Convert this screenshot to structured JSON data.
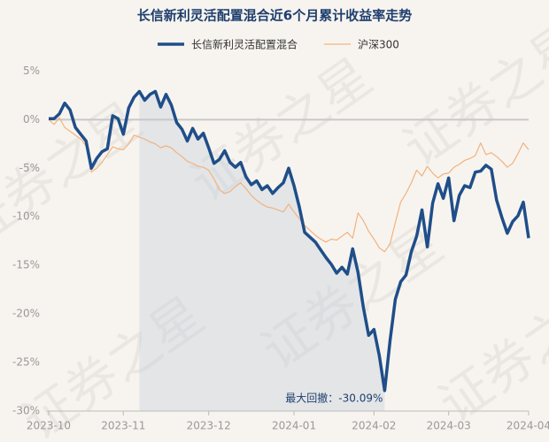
{
  "chart_data": {
    "type": "line",
    "title": "长信新利灵活配置混合近6个月累计收益率走势",
    "watermark": "证券之星",
    "annotation": "最大回撤：-30.09%",
    "categories": [
      "2023-10",
      null,
      null,
      null,
      null,
      null,
      null,
      null,
      null,
      null,
      null,
      null,
      null,
      null,
      "2023-11",
      null,
      null,
      null,
      null,
      null,
      null,
      null,
      null,
      null,
      null,
      null,
      null,
      null,
      null,
      null,
      "2023-12",
      null,
      null,
      null,
      null,
      null,
      null,
      null,
      null,
      null,
      null,
      null,
      null,
      null,
      null,
      null,
      "2024-01",
      null,
      null,
      null,
      null,
      null,
      null,
      null,
      null,
      null,
      null,
      null,
      null,
      null,
      null,
      "2024-02",
      null,
      null,
      null,
      null,
      null,
      null,
      null,
      null,
      null,
      null,
      null,
      null,
      null,
      "2024-03",
      null,
      null,
      null,
      null,
      null,
      null,
      null,
      null,
      null,
      null,
      null,
      null,
      null,
      null,
      "2024-04"
    ],
    "series": [
      {
        "name": "长信新利灵活配置混合",
        "color": "#1f4e89",
        "width": 3.5,
        "values": [
          0.1,
          0.1,
          0.6,
          1.7,
          1.0,
          -0.8,
          -1.5,
          -2.2,
          -5.0,
          -4.0,
          -3.3,
          -3.0,
          0.4,
          0.1,
          -1.5,
          1.2,
          2.3,
          2.9,
          2.0,
          2.6,
          2.9,
          1.3,
          2.6,
          1.5,
          -0.3,
          -1.0,
          -2.2,
          -0.9,
          -2.0,
          -1.4,
          -2.9,
          -4.5,
          -4.1,
          -3.2,
          -4.4,
          -4.9,
          -4.4,
          -5.9,
          -6.7,
          -6.3,
          -7.2,
          -6.8,
          -7.6,
          -7.0,
          -6.5,
          -5.0,
          -6.8,
          -9.0,
          -11.6,
          -12.1,
          -12.6,
          -13.4,
          -14.2,
          -14.9,
          -15.8,
          -15.2,
          -15.9,
          -13.3,
          -15.7,
          -19.3,
          -22.2,
          -21.6,
          -24.3,
          -27.9,
          -22.8,
          -18.5,
          -16.7,
          -16.0,
          -13.6,
          -12.0,
          -9.3,
          -13.1,
          -8.6,
          -6.6,
          -8.1,
          -6.0,
          -10.4,
          -7.8,
          -6.8,
          -7.0,
          -5.4,
          -5.3,
          -4.7,
          -5.1,
          -8.3,
          -10.1,
          -11.7,
          -10.5,
          -9.9,
          -8.5,
          -12.2
        ]
      },
      {
        "name": "沪深300",
        "color": "#f2b27e",
        "width": 1.2,
        "values": [
          0.0,
          -0.5,
          0.2,
          -0.8,
          -1.2,
          -1.6,
          -2.0,
          -2.7,
          -5.4,
          -5.0,
          -4.4,
          -3.6,
          -2.8,
          -3.0,
          -3.1,
          -2.5,
          -1.6,
          -1.8,
          -2.0,
          -2.3,
          -2.5,
          -2.9,
          -2.7,
          -2.9,
          -3.4,
          -3.8,
          -4.3,
          -4.5,
          -4.8,
          -4.9,
          -5.2,
          -6.1,
          -7.2,
          -7.6,
          -7.4,
          -6.9,
          -6.5,
          -7.1,
          -7.8,
          -8.3,
          -8.7,
          -9.0,
          -9.1,
          -9.3,
          -9.5,
          -8.7,
          -9.5,
          -10.2,
          -10.9,
          -11.4,
          -11.9,
          -12.3,
          -12.6,
          -12.3,
          -12.4,
          -12.0,
          -11.6,
          -12.2,
          -9.6,
          -10.4,
          -11.5,
          -12.3,
          -13.2,
          -13.6,
          -12.8,
          -10.6,
          -8.5,
          -7.6,
          -6.5,
          -5.2,
          -5.8,
          -4.8,
          -5.5,
          -6.0,
          -5.6,
          -5.5,
          -4.9,
          -4.6,
          -4.2,
          -4.0,
          -3.7,
          -2.4,
          -3.6,
          -3.4,
          -3.8,
          -4.3,
          -4.9,
          -4.5,
          -3.5,
          -2.4,
          -3.1
        ]
      }
    ],
    "ylim": [
      -30,
      6.4
    ],
    "yticks": [
      {
        "value": 5,
        "label": "5%"
      },
      {
        "value": 0,
        "label": "0%"
      },
      {
        "value": -5,
        "label": "-5%"
      },
      {
        "value": -10,
        "label": "-10%"
      },
      {
        "value": -15,
        "label": "-15%"
      },
      {
        "value": -20,
        "label": "-20%"
      },
      {
        "value": -25,
        "label": "-25%"
      },
      {
        "value": -30,
        "label": "-30%"
      }
    ]
  }
}
